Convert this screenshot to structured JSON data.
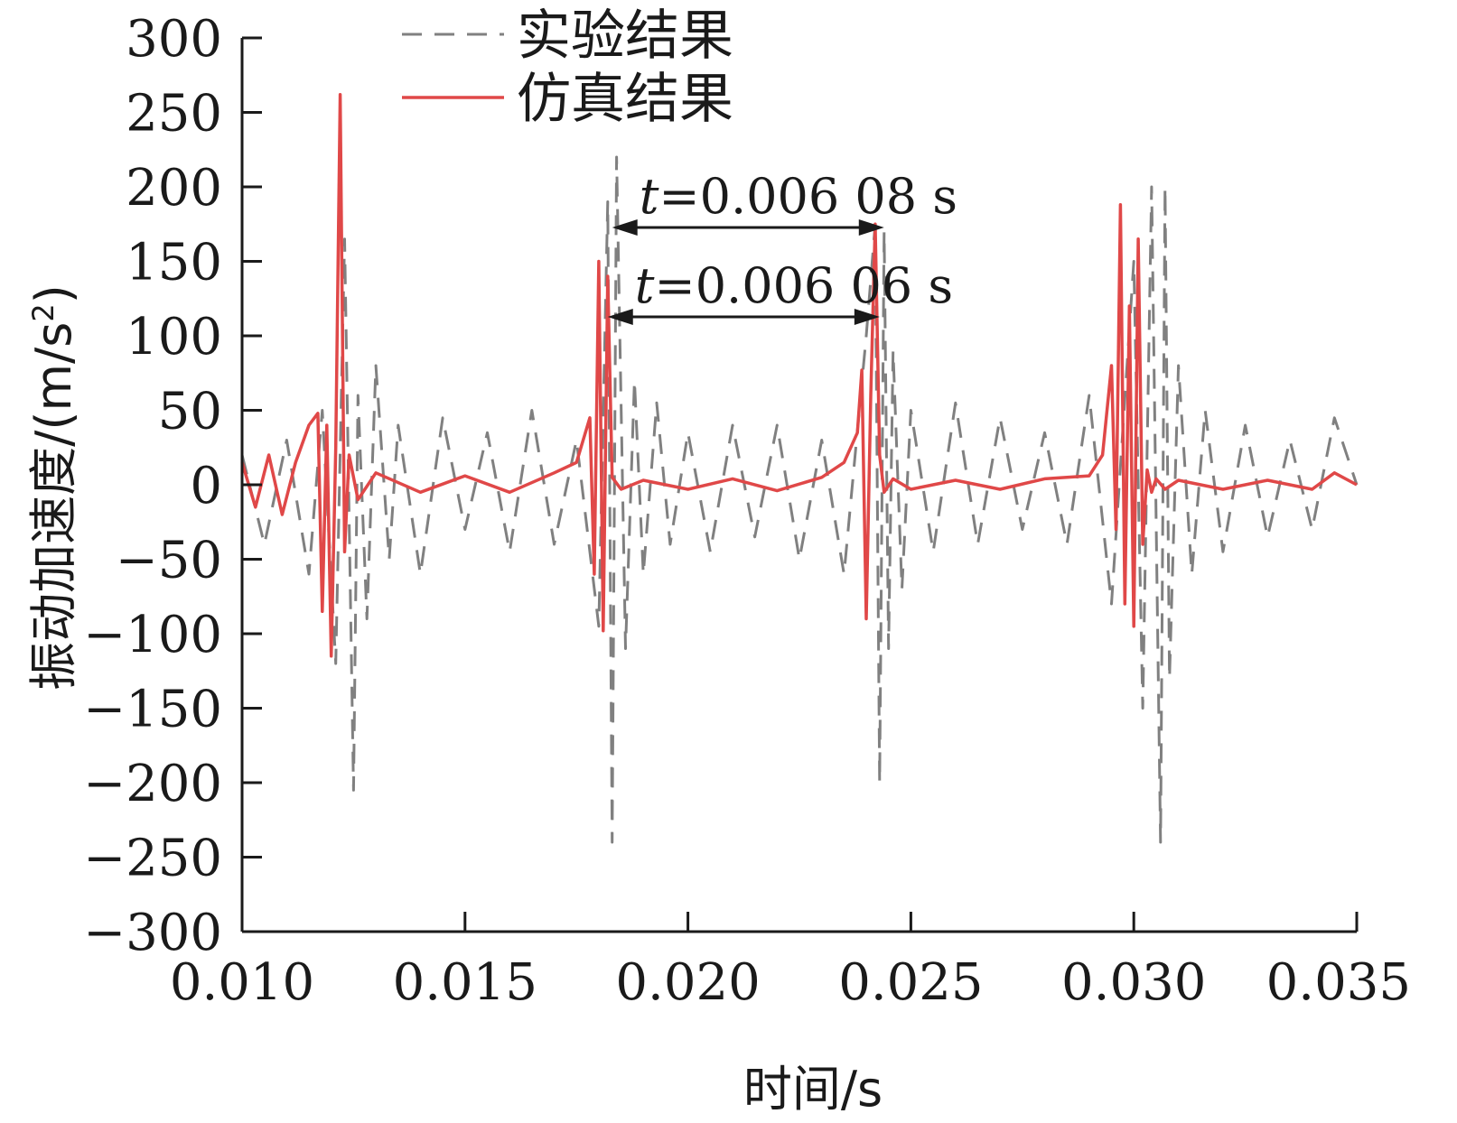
{
  "chart_data": {
    "type": "line",
    "xlabel": "时间/s",
    "ylabel": "振动加速度/(m/s",
    "ylabel_sup": "2",
    "ylabel_end": ")",
    "xlim": [
      0.01,
      0.035
    ],
    "ylim": [
      -300,
      300
    ],
    "xticks": [
      "0.010",
      "0.015",
      "0.020",
      "0.025",
      "0.030",
      "0.035"
    ],
    "yticks": [
      "300",
      "250",
      "200",
      "150",
      "100",
      "50",
      "0",
      "−50",
      "−100",
      "−150",
      "−200",
      "−250",
      "−300"
    ],
    "legend_position": "top-center",
    "series": [
      {
        "name": "实验结果",
        "style": "dashed",
        "color": "#808080",
        "x": [
          0.01,
          0.0105,
          0.011,
          0.0115,
          0.0118,
          0.0121,
          0.0123,
          0.0125,
          0.0126,
          0.0128,
          0.013,
          0.0133,
          0.0135,
          0.014,
          0.0145,
          0.015,
          0.0155,
          0.016,
          0.0165,
          0.017,
          0.0175,
          0.018,
          0.0182,
          0.0183,
          0.0184,
          0.0186,
          0.0188,
          0.019,
          0.0193,
          0.0196,
          0.02,
          0.0205,
          0.021,
          0.0215,
          0.022,
          0.0225,
          0.023,
          0.0235,
          0.024,
          0.0242,
          0.0243,
          0.0244,
          0.0245,
          0.0246,
          0.0248,
          0.025,
          0.0255,
          0.026,
          0.0265,
          0.027,
          0.0275,
          0.028,
          0.0285,
          0.029,
          0.0295,
          0.03,
          0.0302,
          0.0304,
          0.0306,
          0.0307,
          0.0308,
          0.031,
          0.0313,
          0.0316,
          0.032,
          0.0325,
          0.033,
          0.0335,
          0.034,
          0.0345,
          0.035
        ],
        "y": [
          20,
          -40,
          30,
          -60,
          50,
          -120,
          165,
          -205,
          60,
          -90,
          80,
          -50,
          40,
          -60,
          45,
          -30,
          35,
          -45,
          50,
          -40,
          30,
          -95,
          190,
          -240,
          220,
          -110,
          70,
          -60,
          55,
          -40,
          35,
          -45,
          40,
          -35,
          40,
          -50,
          30,
          -60,
          100,
          175,
          -200,
          170,
          -110,
          90,
          -70,
          50,
          -45,
          55,
          -40,
          45,
          -30,
          35,
          -40,
          60,
          -80,
          150,
          -150,
          200,
          -240,
          200,
          -130,
          80,
          -60,
          50,
          -45,
          40,
          -35,
          30,
          -30,
          45,
          0
        ]
      },
      {
        "name": "仿真结果",
        "style": "solid",
        "color": "#e04848",
        "x": [
          0.01,
          0.0103,
          0.0106,
          0.0109,
          0.0112,
          0.0115,
          0.0117,
          0.0118,
          0.0119,
          0.012,
          0.0121,
          0.0122,
          0.0123,
          0.0124,
          0.0126,
          0.013,
          0.014,
          0.015,
          0.016,
          0.017,
          0.0175,
          0.0178,
          0.0179,
          0.018,
          0.0181,
          0.0182,
          0.0183,
          0.0185,
          0.019,
          0.02,
          0.021,
          0.022,
          0.023,
          0.0235,
          0.0238,
          0.0239,
          0.024,
          0.0241,
          0.0242,
          0.0243,
          0.0244,
          0.0246,
          0.025,
          0.026,
          0.027,
          0.028,
          0.029,
          0.0293,
          0.0295,
          0.0296,
          0.0297,
          0.0298,
          0.0299,
          0.03,
          0.0301,
          0.0302,
          0.0303,
          0.0304,
          0.0305,
          0.0307,
          0.031,
          0.032,
          0.033,
          0.034,
          0.0345,
          0.035
        ],
        "y": [
          15,
          -15,
          20,
          -20,
          15,
          40,
          48,
          -85,
          40,
          -115,
          25,
          262,
          -45,
          20,
          -10,
          8,
          -5,
          6,
          -5,
          8,
          15,
          45,
          -60,
          150,
          -98,
          140,
          5,
          -3,
          3,
          -3,
          4,
          -4,
          5,
          15,
          35,
          77,
          -90,
          60,
          175,
          20,
          -5,
          4,
          -3,
          3,
          -3,
          4,
          6,
          20,
          80,
          -30,
          188,
          -80,
          120,
          -95,
          165,
          -40,
          10,
          -5,
          4,
          -3,
          3,
          -3,
          3,
          -3,
          8,
          0
        ]
      }
    ],
    "annotations": [
      {
        "label": "t",
        "text": "=0.006 08 s",
        "x_start": 0.0183,
        "x_end": 0.0244,
        "y": 180
      },
      {
        "label": "t",
        "text": "=0.006 06 s",
        "x_start": 0.0182,
        "x_end": 0.0243,
        "y": 120
      }
    ]
  }
}
